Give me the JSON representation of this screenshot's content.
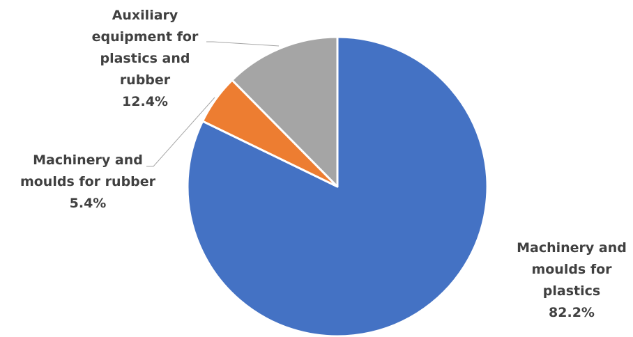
{
  "chart_data": {
    "type": "pie",
    "title": "",
    "start_angle_deg": 0,
    "direction": "clockwise",
    "legend": "none",
    "slices": [
      {
        "label_lines": [
          "Machinery and",
          "moulds for",
          "plastics"
        ],
        "value": 82.2,
        "value_label": "82.2%",
        "color": "#4472c4"
      },
      {
        "label_lines": [
          "Machinery and",
          "moulds for rubber"
        ],
        "value": 5.4,
        "value_label": "5.4%",
        "color": "#ed7d31"
      },
      {
        "label_lines": [
          "Auxiliary",
          "equipment for",
          "plastics and",
          "rubber"
        ],
        "value": 12.4,
        "value_label": "12.4%",
        "color": "#a5a5a5"
      }
    ]
  }
}
